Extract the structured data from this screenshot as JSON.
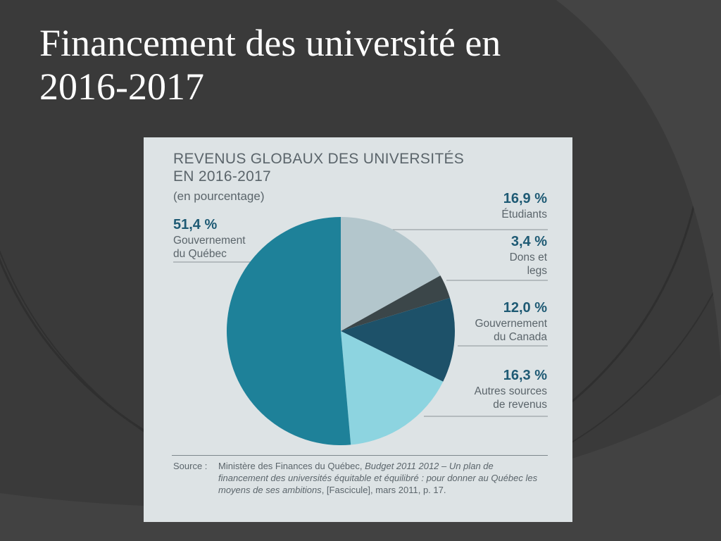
{
  "slide": {
    "title_line1": "Financement des université en",
    "title_line2": "2016-2017"
  },
  "colors": {
    "background": "#3a3a3a",
    "figure_background": "#dde3e5",
    "label_text": "#5b656b",
    "percent_text": "#1e5a74",
    "leader_line": "#8a9398"
  },
  "chart_data": {
    "type": "pie",
    "title_line1": "REVENUS GLOBAUX DES UNIVERSITÉS",
    "title_line2": "EN 2016-2017",
    "subtitle": "(en pourcentage)",
    "slices": [
      {
        "label_line1": "Étudiants",
        "label_line2": "",
        "value": 16.9,
        "display": "16,9 %",
        "color": "#b3c6cc"
      },
      {
        "label_line1": "Dons et",
        "label_line2": "legs",
        "value": 3.4,
        "display": "3,4 %",
        "color": "#3b4649"
      },
      {
        "label_line1": "Gouvernement",
        "label_line2": "du Canada",
        "value": 12.0,
        "display": "12,0 %",
        "color": "#1d5169"
      },
      {
        "label_line1": "Autres sources",
        "label_line2": "de revenus",
        "value": 16.3,
        "display": "16,3 %",
        "color": "#8dd4e0"
      },
      {
        "label_line1": "Gouvernement",
        "label_line2": "du Québec",
        "value": 51.4,
        "display": "51,4 %",
        "color": "#1e8199"
      }
    ],
    "start_angle_deg": 0,
    "direction": "clockwise",
    "legend": "none"
  },
  "source": {
    "label": "Source :",
    "text_plain_1": "Ministère des Finances du Québec, ",
    "text_italic_1": "Budget 2011 2012 – Un plan de financement des universités équitable et équilibré : pour donner au Québec les moyens de ses ambitions",
    "text_plain_2": ", [Fascicule], mars 2011, p. 17."
  }
}
